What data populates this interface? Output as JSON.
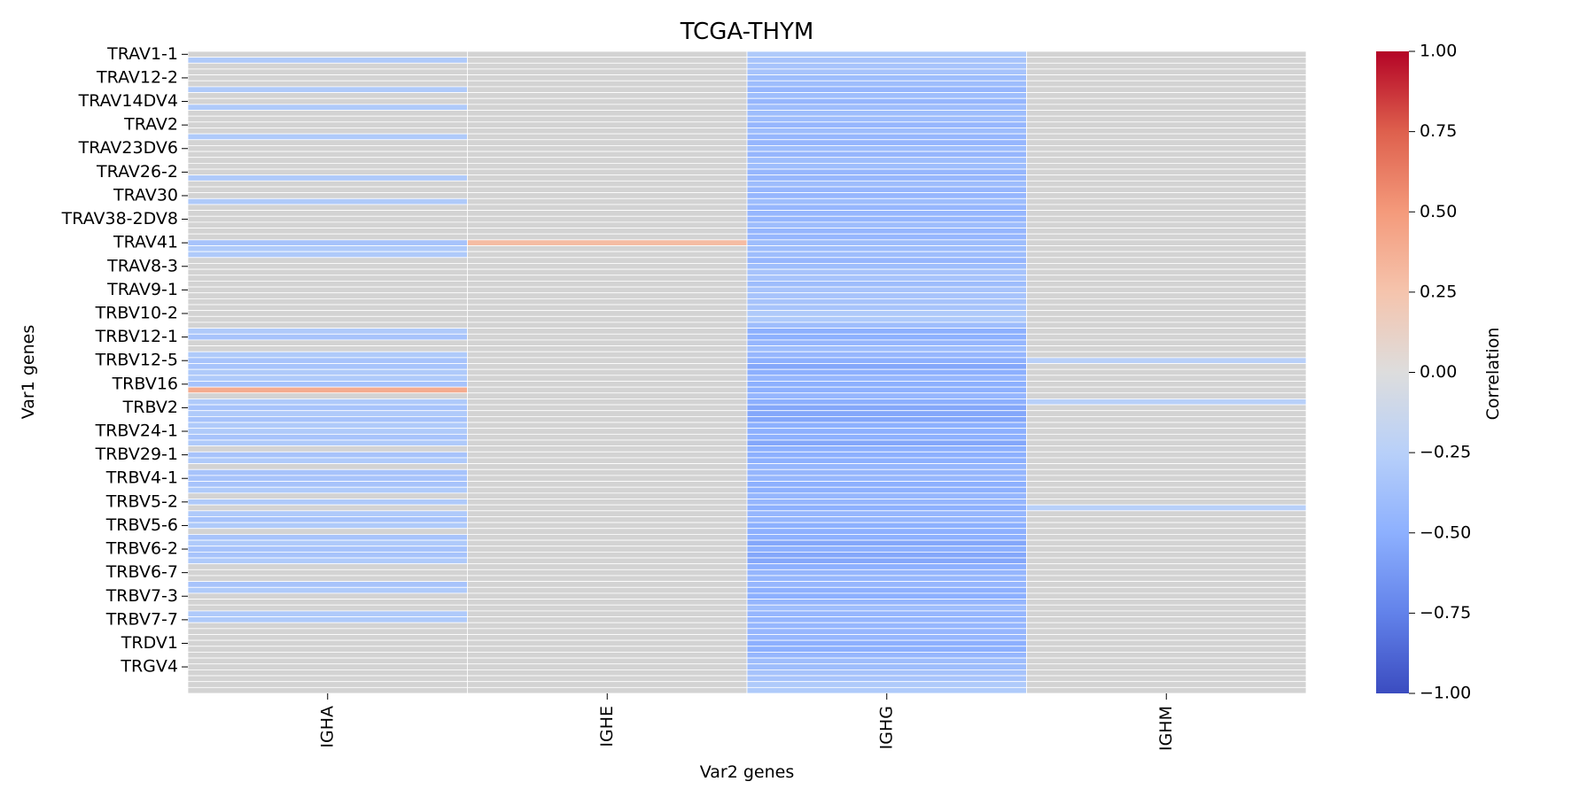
{
  "chart_data": {
    "type": "heatmap",
    "title": "TCGA-THYM",
    "xlabel": "Var2 genes",
    "ylabel": "Var1 genes",
    "colorbar": {
      "label": "Correlation",
      "range": [
        -1.0,
        1.0
      ],
      "ticks": [
        "1.00",
        "0.75",
        "0.50",
        "0.25",
        "0.00",
        "−0.25",
        "−0.50",
        "−0.75",
        "−1.00"
      ],
      "tick_values": [
        1.0,
        0.75,
        0.5,
        0.25,
        0.0,
        -0.25,
        -0.5,
        -0.75,
        -1.0
      ],
      "colormap": "coolwarm",
      "na_color": "#d3d3d3"
    },
    "columns": [
      "IGHA",
      "IGHE",
      "IGHG",
      "IGHM"
    ],
    "row_count": 109,
    "row_tick_labels": [
      {
        "row": 0,
        "label": "TRAV1-1"
      },
      {
        "row": 4,
        "label": "TRAV12-2"
      },
      {
        "row": 8,
        "label": "TRAV14DV4"
      },
      {
        "row": 12,
        "label": "TRAV2"
      },
      {
        "row": 16,
        "label": "TRAV23DV6"
      },
      {
        "row": 20,
        "label": "TRAV26-2"
      },
      {
        "row": 24,
        "label": "TRAV30"
      },
      {
        "row": 28,
        "label": "TRAV38-2DV8"
      },
      {
        "row": 32,
        "label": "TRAV41"
      },
      {
        "row": 36,
        "label": "TRAV8-3"
      },
      {
        "row": 40,
        "label": "TRAV9-1"
      },
      {
        "row": 44,
        "label": "TRBV10-2"
      },
      {
        "row": 48,
        "label": "TRBV12-1"
      },
      {
        "row": 52,
        "label": "TRBV12-5"
      },
      {
        "row": 56,
        "label": "TRBV16"
      },
      {
        "row": 60,
        "label": "TRBV2"
      },
      {
        "row": 64,
        "label": "TRBV24-1"
      },
      {
        "row": 68,
        "label": "TRBV29-1"
      },
      {
        "row": 72,
        "label": "TRBV4-1"
      },
      {
        "row": 76,
        "label": "TRBV5-2"
      },
      {
        "row": 80,
        "label": "TRBV5-6"
      },
      {
        "row": 84,
        "label": "TRBV6-2"
      },
      {
        "row": 88,
        "label": "TRBV6-7"
      },
      {
        "row": 92,
        "label": "TRBV7-3"
      },
      {
        "row": 96,
        "label": "TRBV7-7"
      },
      {
        "row": 100,
        "label": "TRDV1"
      },
      {
        "row": 104,
        "label": "TRGV4"
      }
    ],
    "values": {
      "IGHA": [
        null,
        -0.3,
        null,
        null,
        null,
        null,
        -0.3,
        null,
        null,
        -0.3,
        null,
        null,
        null,
        null,
        -0.3,
        null,
        null,
        null,
        null,
        null,
        null,
        -0.3,
        null,
        null,
        null,
        -0.3,
        null,
        null,
        null,
        null,
        null,
        null,
        -0.35,
        -0.3,
        -0.3,
        null,
        null,
        null,
        null,
        null,
        null,
        null,
        null,
        null,
        null,
        null,
        null,
        -0.3,
        -0.35,
        null,
        null,
        -0.3,
        -0.35,
        -0.35,
        -0.3,
        -0.3,
        -0.35,
        0.4,
        null,
        -0.3,
        -0.35,
        -0.3,
        -0.35,
        -0.3,
        -0.3,
        -0.35,
        -0.3,
        null,
        -0.35,
        -0.3,
        null,
        -0.35,
        -0.35,
        -0.35,
        -0.3,
        null,
        -0.3,
        null,
        -0.3,
        -0.35,
        -0.3,
        null,
        -0.35,
        -0.3,
        -0.35,
        -0.35,
        -0.3,
        null,
        null,
        null,
        -0.35,
        -0.3,
        null,
        null,
        null,
        -0.3,
        -0.3,
        null,
        null,
        null,
        null,
        null,
        null,
        null,
        null,
        null,
        null,
        null,
        null
      ],
      "IGHE": [
        null,
        null,
        null,
        null,
        null,
        null,
        null,
        null,
        null,
        null,
        null,
        null,
        null,
        null,
        null,
        null,
        null,
        null,
        null,
        null,
        null,
        null,
        null,
        null,
        null,
        null,
        null,
        null,
        null,
        null,
        null,
        null,
        0.3,
        null,
        null,
        null,
        null,
        null,
        null,
        null,
        null,
        null,
        null,
        null,
        null,
        null,
        null,
        null,
        null,
        null,
        null,
        null,
        null,
        null,
        null,
        null,
        null,
        null,
        null,
        null,
        null,
        null,
        null,
        null,
        null,
        null,
        null,
        null,
        null,
        null,
        null,
        null,
        null,
        null,
        null,
        null,
        null,
        null,
        null,
        null,
        null,
        null,
        null,
        null,
        null,
        null,
        null,
        null,
        null,
        null,
        null,
        null,
        null,
        null,
        null,
        null,
        null,
        null,
        null,
        null,
        null,
        null,
        null,
        null,
        null,
        null,
        null,
        null,
        null
      ],
      "IGHG": [
        -0.3,
        -0.35,
        -0.35,
        -0.35,
        -0.4,
        -0.4,
        -0.45,
        -0.4,
        -0.45,
        -0.4,
        -0.4,
        -0.4,
        -0.45,
        -0.4,
        -0.45,
        -0.45,
        -0.4,
        -0.45,
        -0.4,
        -0.4,
        -0.45,
        -0.45,
        -0.4,
        -0.45,
        -0.45,
        -0.4,
        -0.45,
        -0.45,
        -0.45,
        -0.4,
        -0.45,
        -0.45,
        -0.4,
        -0.4,
        -0.4,
        -0.45,
        -0.4,
        -0.35,
        -0.35,
        -0.4,
        -0.35,
        -0.35,
        -0.35,
        -0.35,
        -0.3,
        -0.3,
        -0.4,
        -0.5,
        -0.5,
        -0.45,
        -0.4,
        -0.45,
        -0.5,
        -0.55,
        -0.5,
        -0.45,
        -0.5,
        -0.5,
        -0.45,
        -0.5,
        -0.55,
        -0.55,
        -0.55,
        -0.5,
        -0.5,
        -0.5,
        -0.55,
        -0.5,
        -0.5,
        -0.5,
        -0.45,
        -0.45,
        -0.45,
        -0.5,
        -0.5,
        -0.45,
        -0.45,
        -0.5,
        -0.45,
        -0.45,
        -0.5,
        -0.5,
        -0.5,
        -0.55,
        -0.5,
        -0.55,
        -0.55,
        -0.5,
        -0.45,
        -0.45,
        -0.45,
        -0.5,
        -0.5,
        -0.45,
        -0.4,
        -0.45,
        -0.45,
        -0.45,
        -0.45,
        -0.45,
        -0.5,
        -0.5,
        -0.45,
        -0.4,
        -0.4,
        -0.35,
        -0.35,
        -0.3,
        -0.3
      ],
      "IGHM": [
        null,
        null,
        null,
        null,
        null,
        null,
        null,
        null,
        null,
        null,
        null,
        null,
        null,
        null,
        null,
        null,
        null,
        null,
        null,
        null,
        null,
        null,
        null,
        null,
        null,
        null,
        null,
        null,
        null,
        null,
        null,
        null,
        null,
        null,
        null,
        null,
        null,
        null,
        null,
        null,
        null,
        null,
        null,
        null,
        null,
        null,
        null,
        null,
        null,
        null,
        null,
        null,
        -0.25,
        null,
        null,
        null,
        null,
        null,
        null,
        -0.25,
        null,
        null,
        null,
        null,
        null,
        null,
        null,
        null,
        null,
        null,
        null,
        null,
        null,
        null,
        null,
        null,
        null,
        -0.25,
        null,
        null,
        null,
        null,
        null,
        null,
        null,
        null,
        null,
        null,
        null,
        null,
        null,
        null,
        null,
        null,
        null,
        null,
        null,
        null,
        null,
        null,
        null,
        null,
        null,
        null,
        null,
        null,
        null,
        null,
        null
      ]
    }
  }
}
